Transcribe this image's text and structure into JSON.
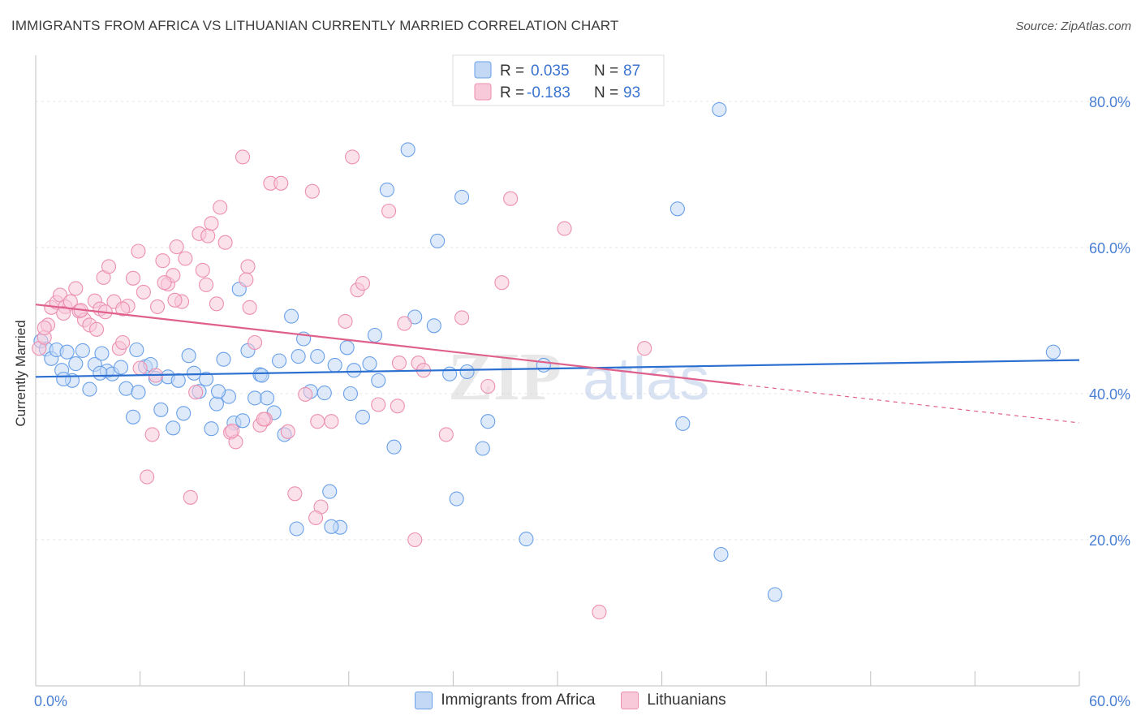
{
  "title": "IMMIGRANTS FROM AFRICA VS LITHUANIAN CURRENTLY MARRIED CORRELATION CHART",
  "source": "Source: ZipAtlas.com",
  "watermark": {
    "zip": "ZIP",
    "atlas": "atlas"
  },
  "chart_data": {
    "type": "scatter",
    "ylabel": "Currently Married",
    "xlim": [
      0,
      60
    ],
    "ylim": [
      0,
      85
    ],
    "x_tick_labels": [
      "0.0%",
      "60.0%"
    ],
    "y_ticks": [
      20,
      40,
      60,
      80
    ],
    "y_tick_labels": [
      "20.0%",
      "40.0%",
      "60.0%",
      "80.0%"
    ],
    "grid": true,
    "legend": {
      "placement": "top-center",
      "entries": [
        {
          "r_label": "R =",
          "r_value": "0.035",
          "n_label": "N =",
          "n_value": "87"
        },
        {
          "r_label": "R =",
          "r_value": "-0.183",
          "n_label": "N =",
          "n_value": "93"
        }
      ]
    },
    "series": [
      {
        "name": "Immigrants from Africa",
        "color": "#6aa0e8",
        "fill": "#c2d8f5",
        "trend": {
          "x0": 0,
          "y0": 42.3,
          "x1": 60,
          "y1": 44.6,
          "solid_to": 60,
          "line_color": "#2b6fd0"
        },
        "points": [
          [
            0.3,
            47.2
          ],
          [
            0.6,
            46.1
          ],
          [
            0.9,
            44.8
          ],
          [
            1.2,
            46.0
          ],
          [
            1.5,
            43.2
          ],
          [
            1.8,
            45.7
          ],
          [
            2.1,
            41.8
          ],
          [
            2.3,
            44.1
          ],
          [
            2.7,
            45.9
          ],
          [
            3.1,
            40.6
          ],
          [
            3.4,
            44.0
          ],
          [
            3.8,
            45.5
          ],
          [
            4.1,
            43.1
          ],
          [
            4.4,
            42.7
          ],
          [
            4.9,
            43.6
          ],
          [
            5.2,
            40.7
          ],
          [
            5.6,
            36.8
          ],
          [
            5.9,
            40.2
          ],
          [
            6.3,
            43.7
          ],
          [
            6.6,
            44.0
          ],
          [
            6.9,
            42.1
          ],
          [
            7.2,
            37.8
          ],
          [
            7.6,
            42.3
          ],
          [
            7.9,
            35.3
          ],
          [
            8.2,
            41.8
          ],
          [
            8.5,
            37.3
          ],
          [
            8.8,
            45.2
          ],
          [
            9.1,
            42.8
          ],
          [
            9.4,
            40.3
          ],
          [
            9.8,
            42.0
          ],
          [
            10.1,
            35.2
          ],
          [
            10.4,
            38.6
          ],
          [
            10.8,
            44.7
          ],
          [
            11.1,
            39.6
          ],
          [
            11.4,
            36.0
          ],
          [
            11.7,
            54.3
          ],
          [
            11.9,
            36.3
          ],
          [
            12.2,
            45.9
          ],
          [
            12.6,
            39.4
          ],
          [
            12.9,
            42.6
          ],
          [
            13.3,
            39.4
          ],
          [
            13.7,
            37.4
          ],
          [
            14.0,
            44.5
          ],
          [
            14.3,
            34.4
          ],
          [
            14.7,
            50.6
          ],
          [
            15.1,
            45.1
          ],
          [
            15.4,
            47.5
          ],
          [
            15.8,
            40.3
          ],
          [
            16.2,
            45.1
          ],
          [
            16.6,
            40.1
          ],
          [
            16.9,
            26.6
          ],
          [
            17.2,
            43.9
          ],
          [
            17.5,
            21.7
          ],
          [
            17.9,
            46.3
          ],
          [
            18.3,
            43.2
          ],
          [
            18.8,
            36.8
          ],
          [
            19.2,
            44.1
          ],
          [
            19.5,
            48.0
          ],
          [
            19.7,
            41.8
          ],
          [
            20.2,
            67.9
          ],
          [
            20.6,
            32.7
          ],
          [
            21.4,
            73.4
          ],
          [
            21.8,
            50.5
          ],
          [
            22.9,
            49.3
          ],
          [
            23.1,
            60.9
          ],
          [
            23.8,
            42.7
          ],
          [
            24.2,
            25.6
          ],
          [
            24.5,
            66.9
          ],
          [
            25.7,
            32.5
          ],
          [
            26.0,
            36.2
          ],
          [
            28.2,
            20.1
          ],
          [
            36.9,
            65.3
          ],
          [
            37.2,
            35.9
          ],
          [
            39.3,
            78.9
          ],
          [
            39.4,
            18.0
          ],
          [
            42.5,
            12.5
          ],
          [
            58.5,
            45.7
          ],
          [
            5.8,
            46.0
          ],
          [
            15.0,
            21.5
          ],
          [
            17.0,
            21.8
          ],
          [
            13.0,
            42.5
          ],
          [
            18.1,
            40.0
          ],
          [
            10.5,
            40.3
          ],
          [
            24.8,
            43.0
          ],
          [
            29.2,
            43.9
          ],
          [
            1.6,
            42.0
          ],
          [
            3.7,
            42.8
          ]
        ]
      },
      {
        "name": "Lithuanians",
        "color": "#ec8fb0",
        "fill": "#f8c9d9",
        "trend": {
          "x0": 0,
          "y0": 52.2,
          "x1": 60,
          "y1": 36.0,
          "solid_to": 40.5,
          "line_color": "#e0608c"
        },
        "points": [
          [
            0.2,
            46.2
          ],
          [
            0.5,
            47.7
          ],
          [
            0.7,
            49.4
          ],
          [
            0.9,
            51.8
          ],
          [
            1.2,
            52.5
          ],
          [
            1.4,
            53.5
          ],
          [
            1.7,
            51.9
          ],
          [
            2.0,
            52.6
          ],
          [
            2.3,
            54.4
          ],
          [
            2.5,
            51.3
          ],
          [
            2.8,
            50.1
          ],
          [
            3.1,
            49.4
          ],
          [
            3.4,
            52.7
          ],
          [
            3.7,
            51.6
          ],
          [
            3.9,
            55.9
          ],
          [
            4.2,
            57.4
          ],
          [
            4.5,
            52.6
          ],
          [
            4.8,
            46.2
          ],
          [
            5.0,
            47.0
          ],
          [
            5.3,
            52.0
          ],
          [
            5.6,
            55.8
          ],
          [
            5.9,
            59.5
          ],
          [
            6.2,
            53.9
          ],
          [
            6.4,
            28.6
          ],
          [
            6.7,
            34.4
          ],
          [
            7.0,
            51.9
          ],
          [
            7.3,
            58.2
          ],
          [
            7.6,
            55.0
          ],
          [
            7.9,
            56.2
          ],
          [
            8.1,
            60.1
          ],
          [
            8.4,
            52.6
          ],
          [
            8.6,
            58.5
          ],
          [
            8.9,
            25.8
          ],
          [
            9.2,
            40.2
          ],
          [
            9.4,
            61.9
          ],
          [
            9.6,
            56.9
          ],
          [
            9.9,
            61.6
          ],
          [
            10.1,
            63.3
          ],
          [
            10.4,
            52.3
          ],
          [
            10.6,
            65.5
          ],
          [
            10.9,
            60.7
          ],
          [
            11.2,
            34.7
          ],
          [
            11.5,
            33.4
          ],
          [
            11.9,
            72.4
          ],
          [
            12.2,
            57.4
          ],
          [
            12.6,
            47.0
          ],
          [
            12.9,
            35.7
          ],
          [
            13.2,
            36.5
          ],
          [
            13.5,
            68.8
          ],
          [
            14.1,
            68.8
          ],
          [
            14.5,
            34.8
          ],
          [
            14.9,
            26.3
          ],
          [
            15.5,
            39.9
          ],
          [
            15.9,
            67.7
          ],
          [
            16.4,
            24.5
          ],
          [
            17.0,
            36.2
          ],
          [
            18.2,
            72.4
          ],
          [
            18.5,
            54.2
          ],
          [
            18.8,
            55.1
          ],
          [
            19.7,
            38.5
          ],
          [
            20.3,
            65.0
          ],
          [
            20.8,
            38.3
          ],
          [
            21.2,
            49.6
          ],
          [
            22.0,
            44.2
          ],
          [
            22.3,
            43.2
          ],
          [
            23.6,
            34.4
          ],
          [
            24.5,
            50.4
          ],
          [
            26.0,
            41.0
          ],
          [
            26.8,
            55.2
          ],
          [
            27.3,
            66.7
          ],
          [
            30.4,
            62.6
          ],
          [
            32.4,
            10.1
          ],
          [
            35.0,
            46.2
          ],
          [
            21.8,
            20.0
          ],
          [
            16.1,
            23.0
          ],
          [
            11.3,
            34.9
          ],
          [
            6.0,
            43.5
          ],
          [
            5.0,
            51.6
          ],
          [
            12.1,
            55.6
          ],
          [
            4.0,
            51.2
          ],
          [
            1.6,
            51.0
          ],
          [
            2.6,
            51.4
          ],
          [
            0.5,
            49.0
          ],
          [
            8.0,
            52.8
          ],
          [
            13.1,
            36.5
          ],
          [
            9.8,
            54.9
          ],
          [
            3.5,
            48.8
          ],
          [
            6.9,
            42.5
          ],
          [
            12.3,
            51.8
          ],
          [
            16.2,
            36.2
          ],
          [
            17.8,
            49.9
          ],
          [
            20.9,
            44.2
          ],
          [
            7.4,
            55.2
          ]
        ]
      }
    ]
  }
}
